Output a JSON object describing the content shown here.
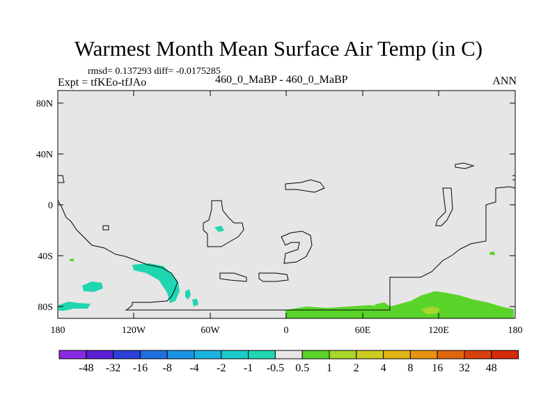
{
  "header": {
    "title": "Warmest Month Mean Surface Air Temp (in C)",
    "stats": "rmsd= 0.137293 diff= -0.0175285",
    "experiment": "Expt = tfKEo-tfJAo",
    "case": "460_0_MaBP - 460_0_MaBP",
    "period": "ANN"
  },
  "chart_data": {
    "type": "heatmap",
    "title": "Warmest Month Mean Surface Air Temp (in C)",
    "x_ticks": [
      "180",
      "120W",
      "60W",
      "0",
      "60E",
      "120E",
      "180"
    ],
    "y_ticks": [
      "80N",
      "40N",
      "0",
      "40S",
      "80S"
    ],
    "xlim": [
      -180,
      180
    ],
    "ylim": [
      -90,
      90
    ],
    "background_value": "-0.5 to 0.5 (near zero everywhere else)",
    "colorbar": {
      "labels": [
        "-48",
        "-32",
        "-16",
        "-8",
        "-4",
        "-2",
        "-1",
        "-0.5",
        "0.5",
        "1",
        "2",
        "4",
        "8",
        "16",
        "32",
        "48"
      ],
      "colors": [
        "#8a2be2",
        "#5b1fd6",
        "#2a40d8",
        "#1e6fe0",
        "#1b94e6",
        "#1ab3e0",
        "#19ccc8",
        "#1fd6b0",
        "#e6e6e6",
        "#5ad42a",
        "#a8d62a",
        "#cccc1e",
        "#e0b414",
        "#e89210",
        "#e0660e",
        "#d9400c",
        "#d42a0a"
      ]
    },
    "regions": [
      {
        "name": "Cooling near 90W 40S",
        "value_range": "-1 to -0.5",
        "color": "#1fd6b0"
      },
      {
        "name": "Cooling near 160W 65S",
        "value_range": "-1 to -0.5",
        "color": "#1fd6b0"
      },
      {
        "name": "Warming Antarctic coast 0-160E",
        "value_range": "0.5 to 1",
        "color": "#5ad42a"
      },
      {
        "name": "Warming near 120E 85S",
        "value_range": "1 to 2",
        "color": "#a8d62a"
      }
    ]
  }
}
